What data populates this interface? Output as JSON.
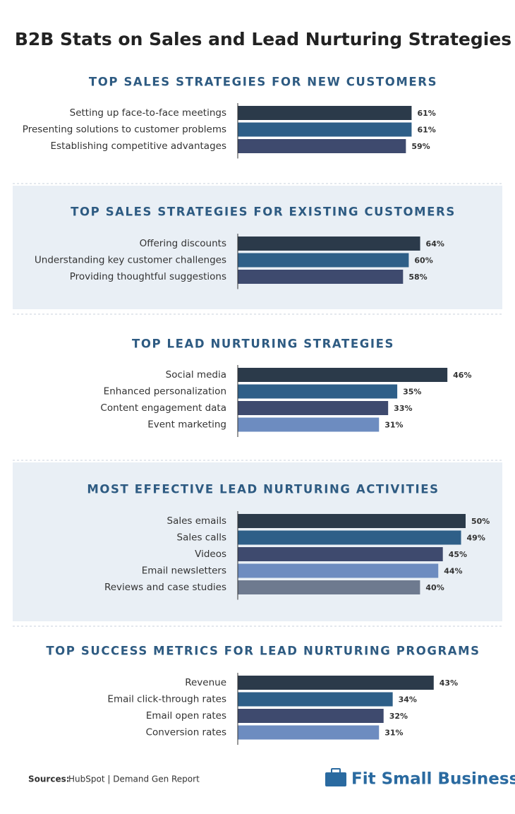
{
  "title": "B2B Stats on Sales and Lead Nurturing Strategies",
  "chart_data": [
    {
      "type": "bar",
      "title": "TOP SALES STRATEGIES FOR NEW CUSTOMERS",
      "categories": [
        "Setting up face-to-face meetings",
        "Presenting solutions to customer problems",
        "Establishing competitive advantages"
      ],
      "values": [
        61,
        61,
        59
      ],
      "value_labels": [
        "61%",
        "61%",
        "59%"
      ],
      "colors": [
        "#2b3a4a",
        "#2e5f88",
        "#3e4a6e"
      ]
    },
    {
      "type": "bar",
      "title": "TOP SALES STRATEGIES FOR EXISTING CUSTOMERS",
      "categories": [
        "Offering discounts",
        "Understanding key customer challenges",
        "Providing thoughtful suggestions"
      ],
      "values": [
        64,
        60,
        58
      ],
      "value_labels": [
        "64%",
        "60%",
        "58%"
      ],
      "colors": [
        "#2b3a4a",
        "#2e5f88",
        "#3e4a6e"
      ]
    },
    {
      "type": "bar",
      "title": "TOP LEAD NURTURING STRATEGIES",
      "categories": [
        "Social media",
        "Enhanced personalization",
        "Content engagement data",
        "Event marketing"
      ],
      "values": [
        46,
        35,
        33,
        31
      ],
      "value_labels": [
        "46%",
        "35%",
        "33%",
        "31%"
      ],
      "colors": [
        "#2b3a4a",
        "#2e5f88",
        "#3e4a6e",
        "#6d8cc0"
      ]
    },
    {
      "type": "bar",
      "title": "MOST EFFECTIVE LEAD NURTURING ACTIVITIES",
      "categories": [
        "Sales emails",
        "Sales calls",
        "Videos",
        "Email newsletters",
        "Reviews and case studies"
      ],
      "values": [
        50,
        49,
        45,
        44,
        40
      ],
      "value_labels": [
        "50%",
        "49%",
        "45%",
        "44%",
        "40%"
      ],
      "colors": [
        "#2b3a4a",
        "#2e5f88",
        "#3e4a6e",
        "#6d8cc0",
        "#6e7a8f"
      ]
    },
    {
      "type": "bar",
      "title": "TOP SUCCESS METRICS FOR LEAD NURTURING PROGRAMS",
      "categories": [
        "Revenue",
        "Email click-through rates",
        "Email open rates",
        "Conversion rates"
      ],
      "values": [
        43,
        34,
        32,
        31
      ],
      "value_labels": [
        "43%",
        "34%",
        "32%",
        "31%"
      ],
      "colors": [
        "#2b3a4a",
        "#2e5f88",
        "#3e4a6e",
        "#6d8cc0"
      ]
    }
  ],
  "sources": {
    "label": "Sources:",
    "text": "HubSpot | Demand Gen Report"
  },
  "logo": "Fit Small Business"
}
